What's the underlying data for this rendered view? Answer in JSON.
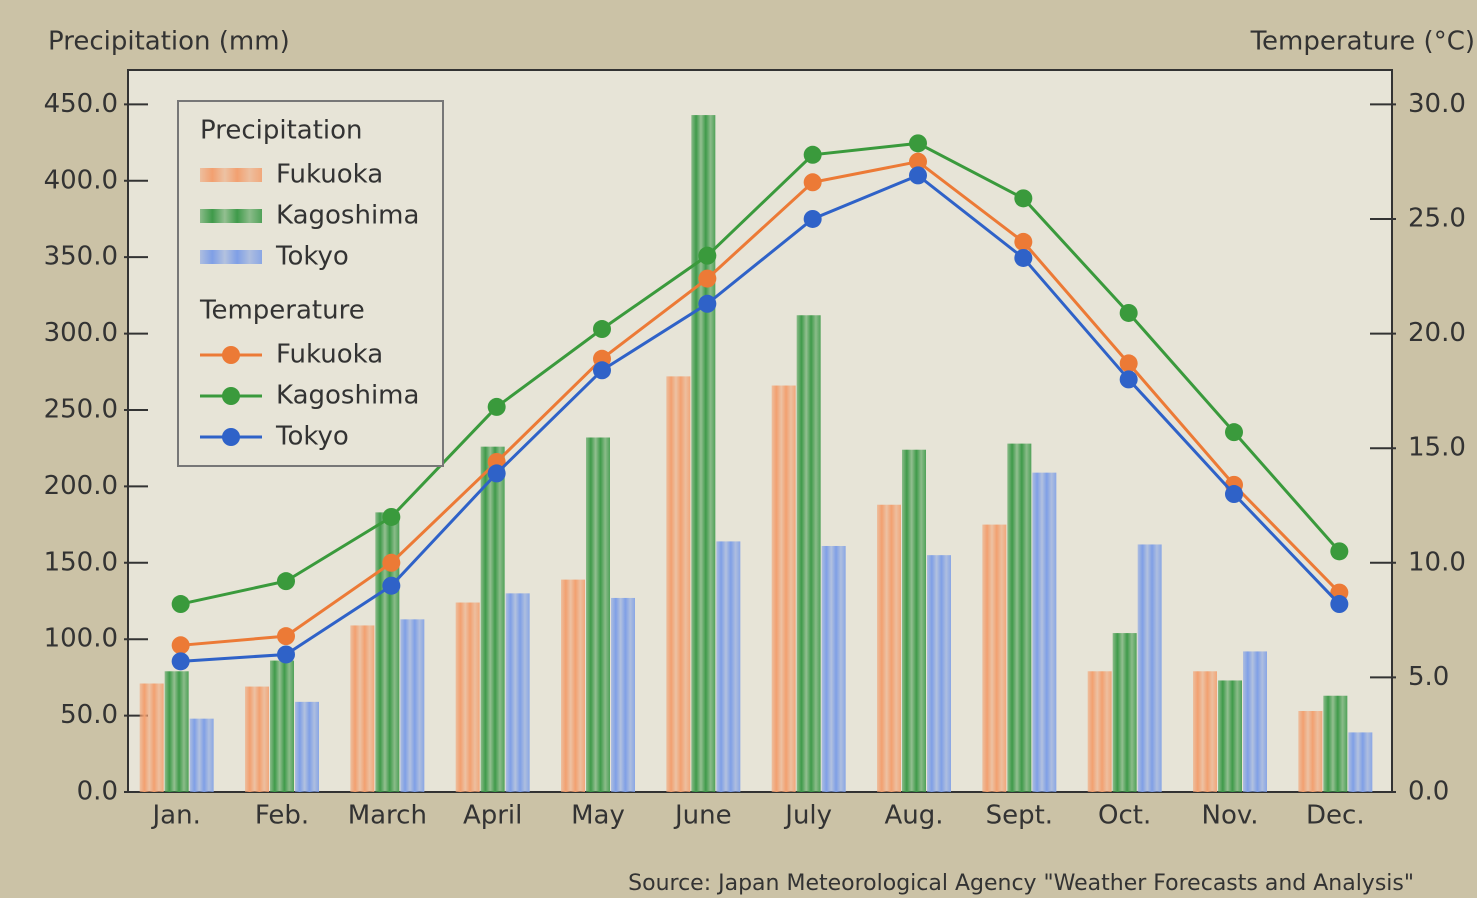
{
  "chart_data": {
    "type": "combo",
    "ylabel": "Precipitation (mm)",
    "y2label": "Temperature (°C)",
    "source": "Source: Japan Meteorological Agency \"Weather Forecasts and Analysis\"",
    "legend_position": "upper left",
    "legend_titles": [
      "Precipitation",
      "Temperature"
    ],
    "categories": [
      "Jan.",
      "Feb.",
      "March",
      "April",
      "May",
      "June",
      "July",
      "Aug.",
      "Sept.",
      "Oct.",
      "Nov.",
      "Dec."
    ],
    "ylim": [
      0,
      472.5
    ],
    "yticks": [
      {
        "value": 0,
        "label": "0.0"
      },
      {
        "value": 50,
        "label": "50.0"
      },
      {
        "value": 100,
        "label": "100.0"
      },
      {
        "value": 150,
        "label": "150.0"
      },
      {
        "value": 200,
        "label": "200.0"
      },
      {
        "value": 250,
        "label": "250.0"
      },
      {
        "value": 300,
        "label": "300.0"
      },
      {
        "value": 350,
        "label": "350.0"
      },
      {
        "value": 400,
        "label": "400.0"
      },
      {
        "value": 450,
        "label": "450.0"
      }
    ],
    "y2lim": [
      0,
      31.5
    ],
    "y2ticks": [
      {
        "value": 0,
        "label": "0.0"
      },
      {
        "value": 5,
        "label": "5.0"
      },
      {
        "value": 10,
        "label": "10.0"
      },
      {
        "value": 15,
        "label": "15.0"
      },
      {
        "value": 20,
        "label": "20.0"
      },
      {
        "value": 25,
        "label": "25.0"
      },
      {
        "value": 30,
        "label": "30.0"
      }
    ],
    "series": [
      {
        "name": "Fukuoka",
        "type": "bar",
        "color": "#f2a070",
        "values": [
          71,
          69,
          109,
          124,
          139,
          272,
          266,
          188,
          175,
          79,
          79,
          53
        ]
      },
      {
        "name": "Kagoshima",
        "type": "bar",
        "color": "#3f9a4a",
        "values": [
          79,
          86,
          183,
          226,
          232,
          443,
          312,
          224,
          228,
          104,
          73,
          63
        ]
      },
      {
        "name": "Tokyo",
        "type": "bar",
        "color": "#7f9fe6",
        "values": [
          48,
          59,
          113,
          130,
          127,
          164,
          161,
          155,
          209,
          162,
          92,
          39
        ]
      },
      {
        "name": "Fukuoka",
        "type": "line",
        "axis": "y2",
        "color": "#ec7a36",
        "values": [
          6.4,
          6.8,
          10.0,
          14.4,
          18.9,
          22.4,
          26.6,
          27.5,
          24.0,
          18.7,
          13.4,
          8.7
        ]
      },
      {
        "name": "Kagoshima",
        "type": "line",
        "axis": "y2",
        "color": "#3a9a3c",
        "values": [
          8.2,
          9.2,
          12.0,
          16.8,
          20.2,
          23.4,
          27.8,
          28.3,
          25.9,
          20.9,
          15.7,
          10.5
        ]
      },
      {
        "name": "Tokyo",
        "type": "line",
        "axis": "y2",
        "color": "#2f62c8",
        "values": [
          5.7,
          6.0,
          9.0,
          13.9,
          18.4,
          21.3,
          25.0,
          26.9,
          23.3,
          18.0,
          13.0,
          8.2
        ]
      }
    ]
  }
}
